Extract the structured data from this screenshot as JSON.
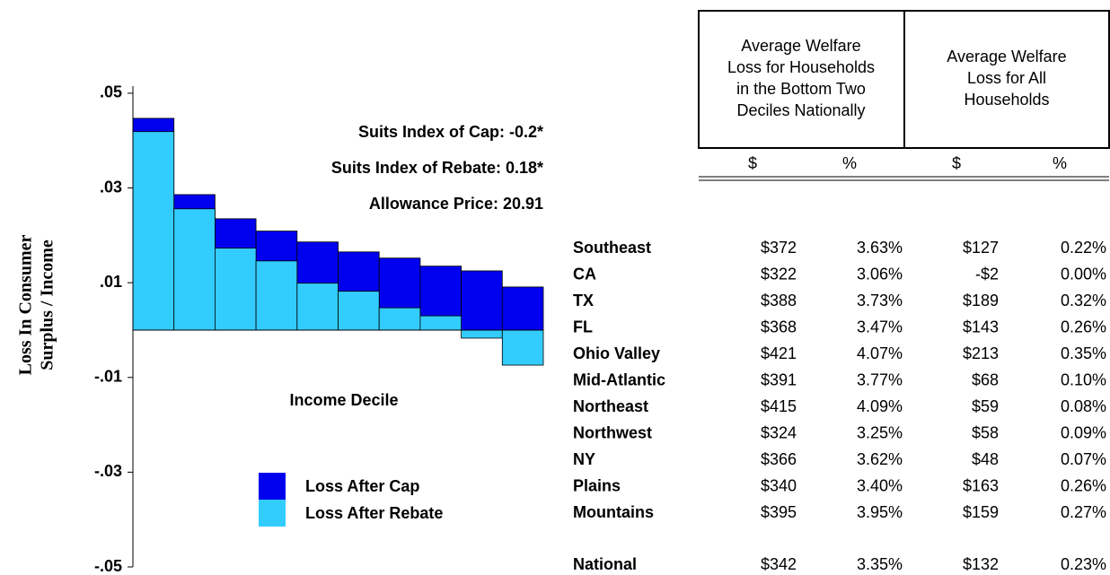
{
  "chart_data": {
    "type": "bar",
    "ylabel": [
      "Loss In Consumer",
      "Surplus / Income"
    ],
    "xlabel": "Income Decile",
    "annotations": [
      "Suits Index of Cap: -0.2*",
      "Suits Index of Rebate: 0.18*",
      "Allowance Price: 20.91"
    ],
    "categories": [
      null,
      null,
      null,
      null,
      null,
      null,
      null,
      null,
      null,
      null
    ],
    "series": [
      {
        "name": "Loss After Cap",
        "color": "#0000ee",
        "values": [
          0.0447,
          0.0286,
          0.0235,
          0.0209,
          0.0186,
          0.0165,
          0.0152,
          0.0135,
          0.0125,
          0.0091
        ]
      },
      {
        "name": "Loss After Rebate",
        "color": "#33ccff",
        "values": [
          0.0419,
          0.0256,
          0.0173,
          0.0146,
          0.0099,
          0.0082,
          0.0047,
          0.003,
          -0.0017,
          -0.0074
        ]
      }
    ],
    "ylim": [
      -0.05,
      0.0515
    ],
    "yticks": [
      {
        "value": 0.05,
        "label": ".05"
      },
      {
        "value": 0.03,
        "label": ".03"
      },
      {
        "value": 0.01,
        "label": ".01"
      },
      {
        "value": -0.01,
        "label": "-.01"
      },
      {
        "value": -0.03,
        "label": "-.03"
      },
      {
        "value": -0.05,
        "label": "-.05"
      }
    ]
  },
  "table": {
    "header": [
      [
        "Average Welfare",
        "Loss for Households",
        "in the Bottom Two",
        "Deciles Nationally"
      ],
      [
        "Average Welfare",
        "Loss for All",
        "Households"
      ]
    ],
    "subheader": [
      "$",
      "%",
      "$",
      "%"
    ],
    "rows": [
      [
        "Southeast",
        "$372",
        "3.63%",
        "$127",
        "0.22%"
      ],
      [
        "CA",
        "$322",
        "3.06%",
        "-$2",
        "0.00%"
      ],
      [
        "TX",
        "$388",
        "3.73%",
        "$189",
        "0.32%"
      ],
      [
        "FL",
        "$368",
        "3.47%",
        "$143",
        "0.26%"
      ],
      [
        "Ohio Valley",
        "$421",
        "4.07%",
        "$213",
        "0.35%"
      ],
      [
        "Mid-Atlantic",
        "$391",
        "3.77%",
        "$68",
        "0.10%"
      ],
      [
        "Northeast",
        "$415",
        "4.09%",
        "$59",
        "0.08%"
      ],
      [
        "Northwest",
        "$324",
        "3.25%",
        "$58",
        "0.09%"
      ],
      [
        "NY",
        "$366",
        "3.62%",
        "$48",
        "0.07%"
      ],
      [
        "Plains",
        "$340",
        "3.40%",
        "$163",
        "0.26%"
      ],
      [
        "Mountains",
        "$395",
        "3.95%",
        "$159",
        "0.27%"
      ]
    ],
    "national": [
      "National",
      "$342",
      "3.35%",
      "$132",
      "0.23%"
    ]
  }
}
